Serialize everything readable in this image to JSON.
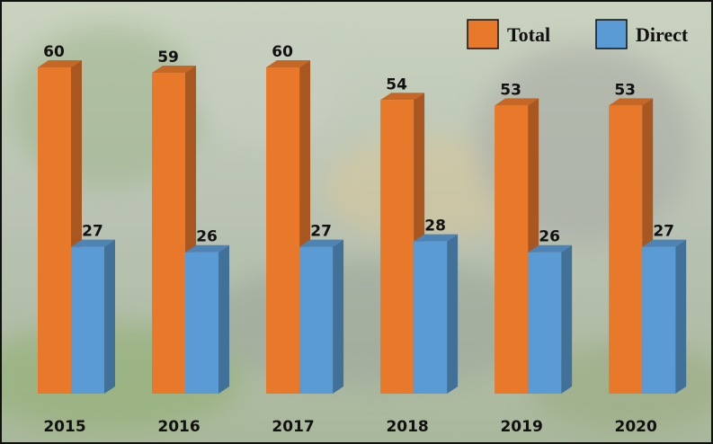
{
  "chart_data": {
    "type": "bar3d",
    "categories": [
      "2015",
      "2016",
      "2017",
      "2018",
      "2019",
      "2020"
    ],
    "series": [
      {
        "name": "Total",
        "color": "#e8792b",
        "values": [
          60,
          59,
          60,
          54,
          53,
          53
        ]
      },
      {
        "name": "Direct",
        "color": "#5a9bd5",
        "values": [
          27,
          26,
          27,
          28,
          26,
          27
        ]
      }
    ],
    "legend": "top-right"
  }
}
